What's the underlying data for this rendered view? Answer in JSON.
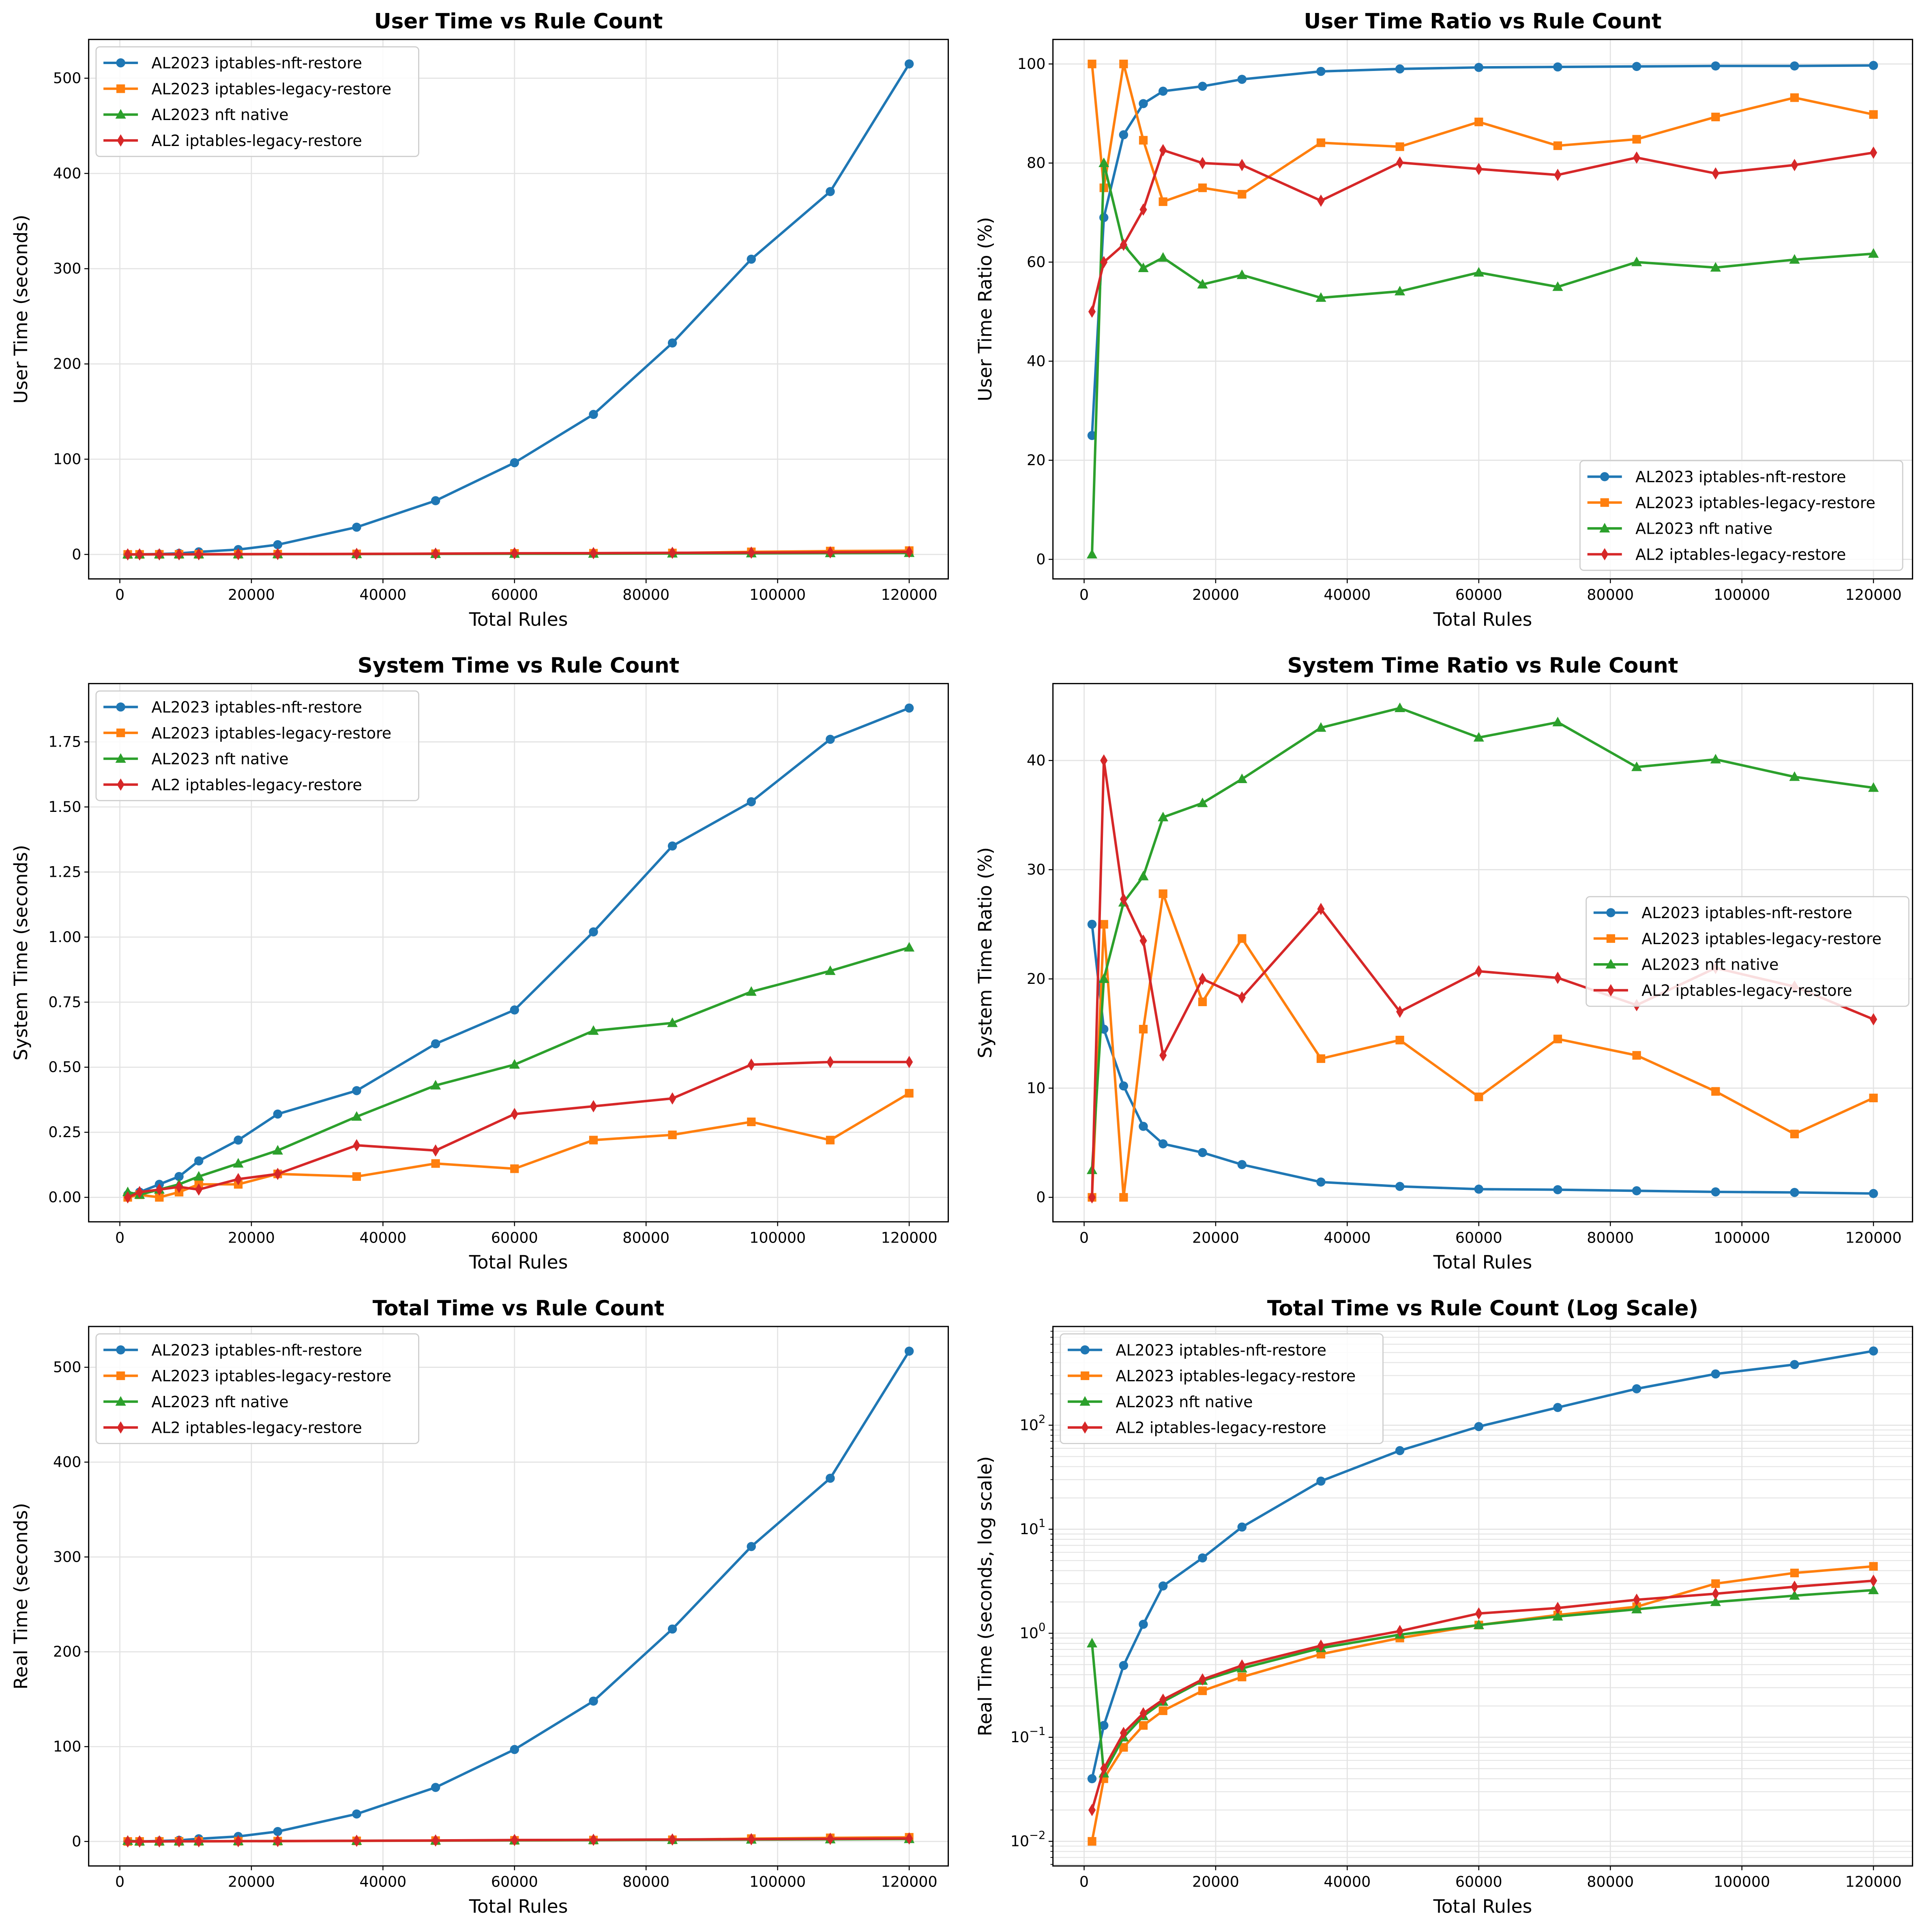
{
  "chart_data": [
    {
      "type": "line",
      "title": "User Time vs Rule Count",
      "xlabel": "Total Rules",
      "ylabel": "User Time (seconds)",
      "yscale": "linear",
      "grid": true,
      "legend": "upper-left",
      "xlim": [
        -4740,
        125940
      ],
      "ylim": [
        -25.7,
        540.7
      ],
      "xticks": [
        0,
        20000,
        40000,
        60000,
        80000,
        100000,
        120000
      ],
      "xtick_labels": [
        "0",
        "20000",
        "40000",
        "60000",
        "80000",
        "100000",
        "120000"
      ],
      "yticks": [
        0,
        100,
        200,
        300,
        400,
        500
      ],
      "ytick_labels": [
        "0",
        "100",
        "200",
        "300",
        "400",
        "500"
      ],
      "x": [
        1200,
        3000,
        6000,
        9000,
        12000,
        18000,
        24000,
        36000,
        48000,
        60000,
        72000,
        84000,
        96000,
        108000,
        120000
      ],
      "series": [
        {
          "name": "AL2023 iptables-nft-restore",
          "color": "#1f77b4",
          "marker": "circle",
          "values": [
            0.01,
            0.09,
            0.42,
            1.12,
            2.7,
            5.1,
            10.2,
            28.6,
            56.4,
            96.3,
            147,
            222,
            310,
            381,
            515
          ]
        },
        {
          "name": "AL2023 iptables-legacy-restore",
          "color": "#ff7f0e",
          "marker": "square",
          "values": [
            0.01,
            0.03,
            0.08,
            0.11,
            0.13,
            0.21,
            0.28,
            0.53,
            0.75,
            1.06,
            1.25,
            1.53,
            2.67,
            3.53,
            3.96
          ]
        },
        {
          "name": "AL2023 nft native",
          "color": "#2ca02c",
          "marker": "triangle",
          "values": [
            0.01,
            0.04,
            0.06,
            0.09,
            0.13,
            0.19,
            0.26,
            0.38,
            0.52,
            0.7,
            0.8,
            1.02,
            1.18,
            1.39,
            1.6
          ]
        },
        {
          "name": "AL2 iptables-legacy-restore",
          "color": "#d62728",
          "marker": "diamond",
          "values": [
            0.01,
            0.03,
            0.07,
            0.12,
            0.19,
            0.29,
            0.39,
            0.55,
            0.84,
            1.22,
            1.36,
            1.7,
            1.87,
            2.22,
            2.62
          ]
        }
      ]
    },
    {
      "type": "line",
      "title": "User Time Ratio vs Rule Count",
      "xlabel": "Total Rules",
      "ylabel": "User Time Ratio (%)",
      "yscale": "linear",
      "grid": true,
      "legend": "lower-right",
      "xlim": [
        -4740,
        125940
      ],
      "ylim": [
        -3.95,
        104.95
      ],
      "xticks": [
        0,
        20000,
        40000,
        60000,
        80000,
        100000,
        120000
      ],
      "xtick_labels": [
        "0",
        "20000",
        "40000",
        "60000",
        "80000",
        "100000",
        "120000"
      ],
      "yticks": [
        0,
        20,
        40,
        60,
        80,
        100
      ],
      "ytick_labels": [
        "0",
        "20",
        "40",
        "60",
        "80",
        "100"
      ],
      "x": [
        1200,
        3000,
        6000,
        9000,
        12000,
        18000,
        24000,
        36000,
        48000,
        60000,
        72000,
        84000,
        96000,
        108000,
        120000
      ],
      "series": [
        {
          "name": "AL2023 iptables-nft-restore",
          "color": "#1f77b4",
          "marker": "circle",
          "values": [
            25,
            69,
            85.7,
            92,
            94.5,
            95.5,
            96.9,
            98.5,
            99,
            99.3,
            99.4,
            99.5,
            99.6,
            99.6,
            99.7
          ]
        },
        {
          "name": "AL2023 iptables-legacy-restore",
          "color": "#ff7f0e",
          "marker": "square",
          "values": [
            100,
            75,
            100,
            84.6,
            72.2,
            75,
            73.7,
            84.1,
            83.3,
            88.3,
            83.5,
            84.8,
            89.3,
            93.2,
            89.8
          ]
        },
        {
          "name": "AL2023 nft native",
          "color": "#2ca02c",
          "marker": "triangle",
          "values": [
            1,
            80,
            63.5,
            58.8,
            60.9,
            55.5,
            57.4,
            52.8,
            54.1,
            57.9,
            55,
            60,
            58.9,
            60.5,
            61.7
          ]
        },
        {
          "name": "AL2 iptables-legacy-restore",
          "color": "#d62728",
          "marker": "diamond",
          "values": [
            50,
            60,
            63.5,
            70.6,
            82.6,
            80,
            79.6,
            72.4,
            80.1,
            78.8,
            77.6,
            81.1,
            77.9,
            79.6,
            82.1
          ]
        }
      ]
    },
    {
      "type": "line",
      "title": "System Time vs Rule Count",
      "xlabel": "Total Rules",
      "ylabel": "System Time (seconds)",
      "yscale": "linear",
      "grid": true,
      "legend": "upper-left",
      "xlim": [
        -4740,
        125940
      ],
      "ylim": [
        -0.094,
        1.974
      ],
      "xticks": [
        0,
        20000,
        40000,
        60000,
        80000,
        100000,
        120000
      ],
      "xtick_labels": [
        "0",
        "20000",
        "40000",
        "60000",
        "80000",
        "100000",
        "120000"
      ],
      "yticks": [
        0,
        0.25,
        0.5,
        0.75,
        1,
        1.25,
        1.5,
        1.75
      ],
      "ytick_labels": [
        "0.00",
        "0.25",
        "0.50",
        "0.75",
        "1.00",
        "1.25",
        "1.50",
        "1.75"
      ],
      "x": [
        1200,
        3000,
        6000,
        9000,
        12000,
        18000,
        24000,
        36000,
        48000,
        60000,
        72000,
        84000,
        96000,
        108000,
        120000
      ],
      "series": [
        {
          "name": "AL2023 iptables-nft-restore",
          "color": "#1f77b4",
          "marker": "circle",
          "values": [
            0.01,
            0.02,
            0.05,
            0.08,
            0.14,
            0.22,
            0.32,
            0.41,
            0.59,
            0.72,
            1.02,
            1.35,
            1.52,
            1.76,
            1.88
          ]
        },
        {
          "name": "AL2023 iptables-legacy-restore",
          "color": "#ff7f0e",
          "marker": "square",
          "values": [
            0,
            0.01,
            0,
            0.02,
            0.05,
            0.05,
            0.09,
            0.08,
            0.13,
            0.11,
            0.22,
            0.24,
            0.29,
            0.22,
            0.4
          ]
        },
        {
          "name": "AL2023 nft native",
          "color": "#2ca02c",
          "marker": "triangle",
          "values": [
            0.02,
            0.01,
            0.03,
            0.05,
            0.08,
            0.13,
            0.18,
            0.31,
            0.43,
            0.51,
            0.64,
            0.67,
            0.79,
            0.87,
            0.96
          ]
        },
        {
          "name": "AL2 iptables-legacy-restore",
          "color": "#d62728",
          "marker": "diamond",
          "values": [
            0,
            0.02,
            0.03,
            0.04,
            0.03,
            0.07,
            0.09,
            0.2,
            0.18,
            0.32,
            0.35,
            0.38,
            0.51,
            0.52,
            0.52
          ]
        }
      ]
    },
    {
      "type": "line",
      "title": "System Time Ratio vs Rule Count",
      "xlabel": "Total Rules",
      "ylabel": "System Time Ratio (%)",
      "yscale": "linear",
      "grid": true,
      "legend": "center-right",
      "xlim": [
        -4740,
        125940
      ],
      "ylim": [
        -2.24,
        47.04
      ],
      "xticks": [
        0,
        20000,
        40000,
        60000,
        80000,
        100000,
        120000
      ],
      "xtick_labels": [
        "0",
        "20000",
        "40000",
        "60000",
        "80000",
        "100000",
        "120000"
      ],
      "yticks": [
        0,
        10,
        20,
        30,
        40
      ],
      "ytick_labels": [
        "0",
        "10",
        "20",
        "30",
        "40"
      ],
      "x": [
        1200,
        3000,
        6000,
        9000,
        12000,
        18000,
        24000,
        36000,
        48000,
        60000,
        72000,
        84000,
        96000,
        108000,
        120000
      ],
      "series": [
        {
          "name": "AL2023 iptables-nft-restore",
          "color": "#1f77b4",
          "marker": "circle",
          "values": [
            25,
            15.4,
            10.2,
            6.5,
            4.9,
            4.1,
            3.0,
            1.4,
            1.0,
            0.75,
            0.7,
            0.6,
            0.5,
            0.45,
            0.35
          ]
        },
        {
          "name": "AL2023 iptables-legacy-restore",
          "color": "#ff7f0e",
          "marker": "square",
          "values": [
            0,
            25,
            0,
            15.4,
            27.8,
            17.9,
            23.7,
            12.7,
            14.4,
            9.2,
            14.5,
            13,
            9.7,
            5.8,
            9.1
          ]
        },
        {
          "name": "AL2023 nft native",
          "color": "#2ca02c",
          "marker": "triangle",
          "values": [
            2.5,
            20,
            27,
            29.4,
            34.8,
            36.1,
            38.3,
            43,
            44.8,
            42.1,
            43.5,
            39.4,
            40.1,
            38.5,
            37.5
          ]
        },
        {
          "name": "AL2 iptables-legacy-restore",
          "color": "#d62728",
          "marker": "diamond",
          "values": [
            0,
            40,
            27.3,
            23.5,
            13,
            20,
            18.3,
            26.4,
            17,
            20.7,
            20.1,
            17.6,
            21,
            19.3,
            16.3
          ]
        }
      ]
    },
    {
      "type": "line",
      "title": "Total Time vs Rule Count",
      "xlabel": "Total Rules",
      "ylabel": "Real Time (seconds)",
      "yscale": "linear",
      "grid": true,
      "legend": "upper-left",
      "xlim": [
        -4740,
        125940
      ],
      "ylim": [
        -25.8,
        543
      ],
      "xticks": [
        0,
        20000,
        40000,
        60000,
        80000,
        100000,
        120000
      ],
      "xtick_labels": [
        "0",
        "20000",
        "40000",
        "60000",
        "80000",
        "100000",
        "120000"
      ],
      "yticks": [
        0,
        100,
        200,
        300,
        400,
        500
      ],
      "ytick_labels": [
        "0",
        "100",
        "200",
        "300",
        "400",
        "500"
      ],
      "x": [
        1200,
        3000,
        6000,
        9000,
        12000,
        18000,
        24000,
        36000,
        48000,
        60000,
        72000,
        84000,
        96000,
        108000,
        120000
      ],
      "series": [
        {
          "name": "AL2023 iptables-nft-restore",
          "color": "#1f77b4",
          "marker": "circle",
          "values": [
            0.04,
            0.13,
            0.49,
            1.22,
            2.85,
            5.3,
            10.5,
            29,
            57,
            97,
            148,
            224,
            311,
            383,
            517
          ]
        },
        {
          "name": "AL2023 iptables-legacy-restore",
          "color": "#ff7f0e",
          "marker": "square",
          "values": [
            0.01,
            0.04,
            0.08,
            0.13,
            0.18,
            0.28,
            0.38,
            0.63,
            0.9,
            1.2,
            1.5,
            1.8,
            3.0,
            3.8,
            4.4
          ]
        },
        {
          "name": "AL2023 nft native",
          "color": "#2ca02c",
          "marker": "triangle",
          "values": [
            0.8,
            0.045,
            0.1,
            0.16,
            0.22,
            0.35,
            0.46,
            0.72,
            0.97,
            1.2,
            1.45,
            1.7,
            2.0,
            2.3,
            2.6
          ]
        },
        {
          "name": "AL2 iptables-legacy-restore",
          "color": "#d62728",
          "marker": "diamond",
          "values": [
            0.02,
            0.05,
            0.11,
            0.17,
            0.23,
            0.36,
            0.49,
            0.76,
            1.05,
            1.55,
            1.75,
            2.1,
            2.4,
            2.8,
            3.2
          ]
        }
      ]
    },
    {
      "type": "line",
      "title": "Total Time vs Rule Count (Log Scale)",
      "xlabel": "Total Rules",
      "ylabel": "Real Time (seconds, log scale)",
      "yscale": "log",
      "grid": true,
      "legend": "upper-left",
      "xlim": [
        -4740,
        125940
      ],
      "ylim": [
        0.0058,
        889
      ],
      "xticks": [
        0,
        20000,
        40000,
        60000,
        80000,
        100000,
        120000
      ],
      "xtick_labels": [
        "0",
        "20000",
        "40000",
        "60000",
        "80000",
        "100000",
        "120000"
      ],
      "yticks": [
        0.01,
        0.1,
        1,
        10,
        100
      ],
      "ytick_labels": [
        "10|-2",
        "10|-1",
        "10|0",
        "10|1",
        "10|2"
      ],
      "x": [
        1200,
        3000,
        6000,
        9000,
        12000,
        18000,
        24000,
        36000,
        48000,
        60000,
        72000,
        84000,
        96000,
        108000,
        120000
      ],
      "series": [
        {
          "name": "AL2023 iptables-nft-restore",
          "color": "#1f77b4",
          "marker": "circle",
          "values": [
            0.04,
            0.13,
            0.49,
            1.22,
            2.85,
            5.3,
            10.5,
            29,
            57,
            97,
            148,
            224,
            311,
            383,
            517
          ]
        },
        {
          "name": "AL2023 iptables-legacy-restore",
          "color": "#ff7f0e",
          "marker": "square",
          "values": [
            0.01,
            0.04,
            0.08,
            0.13,
            0.18,
            0.28,
            0.38,
            0.63,
            0.9,
            1.2,
            1.5,
            1.8,
            3.0,
            3.8,
            4.4
          ]
        },
        {
          "name": "AL2023 nft native",
          "color": "#2ca02c",
          "marker": "triangle",
          "values": [
            0.8,
            0.045,
            0.1,
            0.16,
            0.22,
            0.35,
            0.46,
            0.72,
            0.97,
            1.2,
            1.45,
            1.7,
            2.0,
            2.3,
            2.6
          ]
        },
        {
          "name": "AL2 iptables-legacy-restore",
          "color": "#d62728",
          "marker": "diamond",
          "values": [
            0.02,
            0.05,
            0.11,
            0.17,
            0.23,
            0.36,
            0.49,
            0.76,
            1.05,
            1.55,
            1.75,
            2.1,
            2.4,
            2.8,
            3.2
          ]
        }
      ]
    }
  ]
}
